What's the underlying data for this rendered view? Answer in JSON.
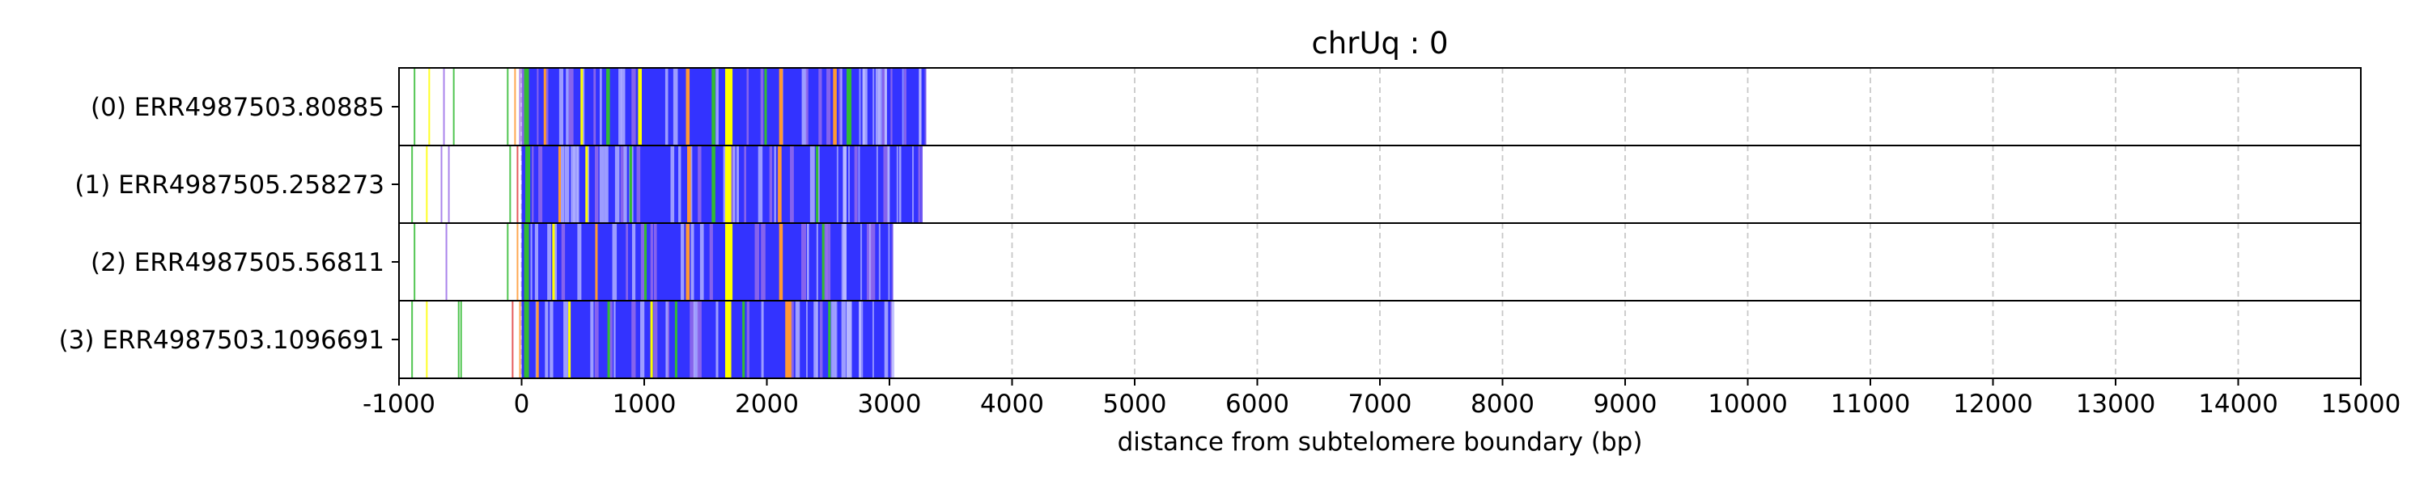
{
  "chart_data": {
    "type": "read-track",
    "title": "chrUq : 0",
    "xlabel": "distance from subtelomere boundary (bp)",
    "ylabel": "",
    "xlim": [
      -1000,
      15000
    ],
    "x_ticks": [
      -1000,
      0,
      1000,
      2000,
      3000,
      4000,
      5000,
      6000,
      7000,
      8000,
      9000,
      10000,
      11000,
      12000,
      13000,
      14000,
      15000
    ],
    "grid": "vertical dashed",
    "colors": {
      "repeat": "#3333ff",
      "light": "#b8b8ff",
      "violet": "#9b6fe8",
      "yellow": "#ffff00",
      "orange": "#ff9933",
      "green": "#33bb33",
      "red": "#e04040",
      "cyan": "#40c8e8",
      "grid": "#c8c8c8"
    },
    "reads": [
      {
        "label": "(0) ERR4987503.80885",
        "end": 3300,
        "prefix_marks": [
          [
            -880,
            "green"
          ],
          [
            -760,
            "yellow"
          ],
          [
            -640,
            "violet"
          ],
          [
            -560,
            "green"
          ],
          [
            -120,
            "green"
          ],
          [
            -60,
            "orange"
          ],
          [
            -20,
            "violet"
          ]
        ],
        "bands": [
          [
            20,
            60,
            "green"
          ],
          [
            180,
            200,
            "orange"
          ],
          [
            480,
            500,
            "yellow"
          ],
          [
            690,
            720,
            "green"
          ],
          [
            950,
            980,
            "yellow"
          ],
          [
            1340,
            1370,
            "orange"
          ],
          [
            1550,
            1580,
            "green"
          ],
          [
            1660,
            1720,
            "yellow"
          ],
          [
            1980,
            2000,
            "green"
          ],
          [
            2100,
            2130,
            "orange"
          ],
          [
            2540,
            2570,
            "orange"
          ],
          [
            2650,
            2690,
            "green"
          ],
          [
            2780,
            2800,
            "light"
          ],
          [
            2960,
            2980,
            "light"
          ],
          [
            3240,
            3260,
            "light"
          ]
        ]
      },
      {
        "label": "(1) ERR4987505.258273",
        "end": 3270,
        "prefix_marks": [
          [
            -900,
            "green"
          ],
          [
            -780,
            "yellow"
          ],
          [
            -660,
            "violet"
          ],
          [
            -600,
            "violet"
          ],
          [
            -100,
            "green"
          ],
          [
            -40,
            "red"
          ]
        ],
        "bands": [
          [
            30,
            70,
            "green"
          ],
          [
            300,
            320,
            "orange"
          ],
          [
            520,
            540,
            "yellow"
          ],
          [
            880,
            900,
            "green"
          ],
          [
            1350,
            1380,
            "orange"
          ],
          [
            1550,
            1580,
            "green"
          ],
          [
            1660,
            1710,
            "yellow"
          ],
          [
            2090,
            2120,
            "orange"
          ],
          [
            2400,
            2420,
            "green"
          ],
          [
            2620,
            2650,
            "light"
          ]
        ]
      },
      {
        "label": "(2) ERR4987505.56811",
        "end": 3030,
        "prefix_marks": [
          [
            -880,
            "green"
          ],
          [
            -620,
            "violet"
          ],
          [
            -120,
            "green"
          ],
          [
            -40,
            "orange"
          ]
        ],
        "bands": [
          [
            20,
            60,
            "green"
          ],
          [
            250,
            270,
            "yellow"
          ],
          [
            600,
            620,
            "orange"
          ],
          [
            1000,
            1020,
            "green"
          ],
          [
            1340,
            1370,
            "orange"
          ],
          [
            1660,
            1720,
            "yellow"
          ],
          [
            2100,
            2130,
            "orange"
          ],
          [
            2450,
            2470,
            "green"
          ],
          [
            2620,
            2650,
            "light"
          ]
        ]
      },
      {
        "label": "(3) ERR4987503.1096691",
        "end": 3020,
        "prefix_marks": [
          [
            -900,
            "green"
          ],
          [
            -780,
            "yellow"
          ],
          [
            -520,
            "green"
          ],
          [
            -500,
            "green"
          ],
          [
            -80,
            "red"
          ],
          [
            -20,
            "orange"
          ]
        ],
        "bands": [
          [
            20,
            60,
            "green"
          ],
          [
            120,
            140,
            "orange"
          ],
          [
            380,
            400,
            "yellow"
          ],
          [
            700,
            720,
            "green"
          ],
          [
            1050,
            1070,
            "yellow"
          ],
          [
            1250,
            1270,
            "green"
          ],
          [
            1660,
            1710,
            "yellow"
          ],
          [
            1800,
            1820,
            "green"
          ],
          [
            2150,
            2200,
            "orange"
          ],
          [
            2500,
            2520,
            "green"
          ],
          [
            2650,
            2680,
            "light"
          ],
          [
            2750,
            2770,
            "light"
          ]
        ]
      }
    ]
  }
}
